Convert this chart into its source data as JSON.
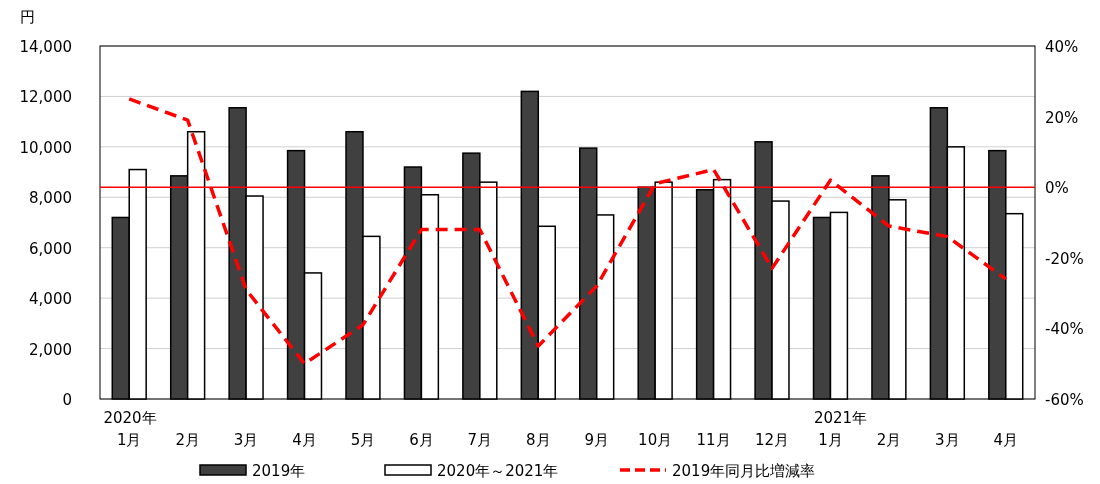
{
  "chart_data": {
    "type": "bar",
    "categories": [
      "2020年\n1月",
      "2月",
      "3月",
      "4月",
      "5月",
      "6月",
      "7月",
      "8月",
      "9月",
      "10月",
      "11月",
      "12月",
      "2021年\n1月",
      "2月",
      "3月",
      "4月"
    ],
    "ylabel": "円",
    "ylim": [
      0,
      14000
    ],
    "yticks": [
      0,
      {
        "value": 2000,
        "label": "2,000"
      },
      {
        "value": 4000,
        "label": "4,000"
      },
      {
        "value": 6000,
        "label": "6,000"
      },
      {
        "value": 8000,
        "label": "8,000"
      },
      {
        "value": 10000,
        "label": "10,000"
      },
      {
        "value": 12000,
        "label": "12,000"
      },
      {
        "value": 14000,
        "label": "14,000"
      }
    ],
    "y2lim": [
      -60,
      40
    ],
    "y2ticks": [
      {
        "value": -60,
        "label": "-60%"
      },
      {
        "value": -40,
        "label": "-40%"
      },
      {
        "value": -20,
        "label": "-20%"
      },
      {
        "value": 0,
        "label": "0%"
      },
      {
        "value": 20,
        "label": "20%"
      },
      {
        "value": 40,
        "label": "40%"
      }
    ],
    "grid": "y",
    "legend": "bottom",
    "series": [
      {
        "name": "2019年",
        "color": "#404040",
        "values": [
          7200,
          8850,
          11550,
          9850,
          10600,
          9200,
          9750,
          12200,
          9950,
          8400,
          8300,
          10200,
          7200,
          8850,
          11550,
          9850
        ]
      },
      {
        "name": "2020年～2021年",
        "color": "#ffffff",
        "values": [
          9100,
          10600,
          8050,
          5000,
          6450,
          8100,
          8600,
          6850,
          7300,
          8600,
          8700,
          7850,
          7400,
          7900,
          10000,
          7350
        ]
      },
      {
        "name": "2019年同月比増減率",
        "type": "line",
        "axis": "y2",
        "color": "#ff0000",
        "line_style": "dashed",
        "values": [
          25,
          19,
          -29,
          -50,
          -39,
          -12,
          -12,
          -45,
          -28,
          1,
          5,
          -23,
          2,
          -11,
          -14,
          -26
        ]
      }
    ],
    "ref_lines": [
      {
        "axis": "y2",
        "value": 0,
        "color": "#ff0000"
      }
    ]
  }
}
